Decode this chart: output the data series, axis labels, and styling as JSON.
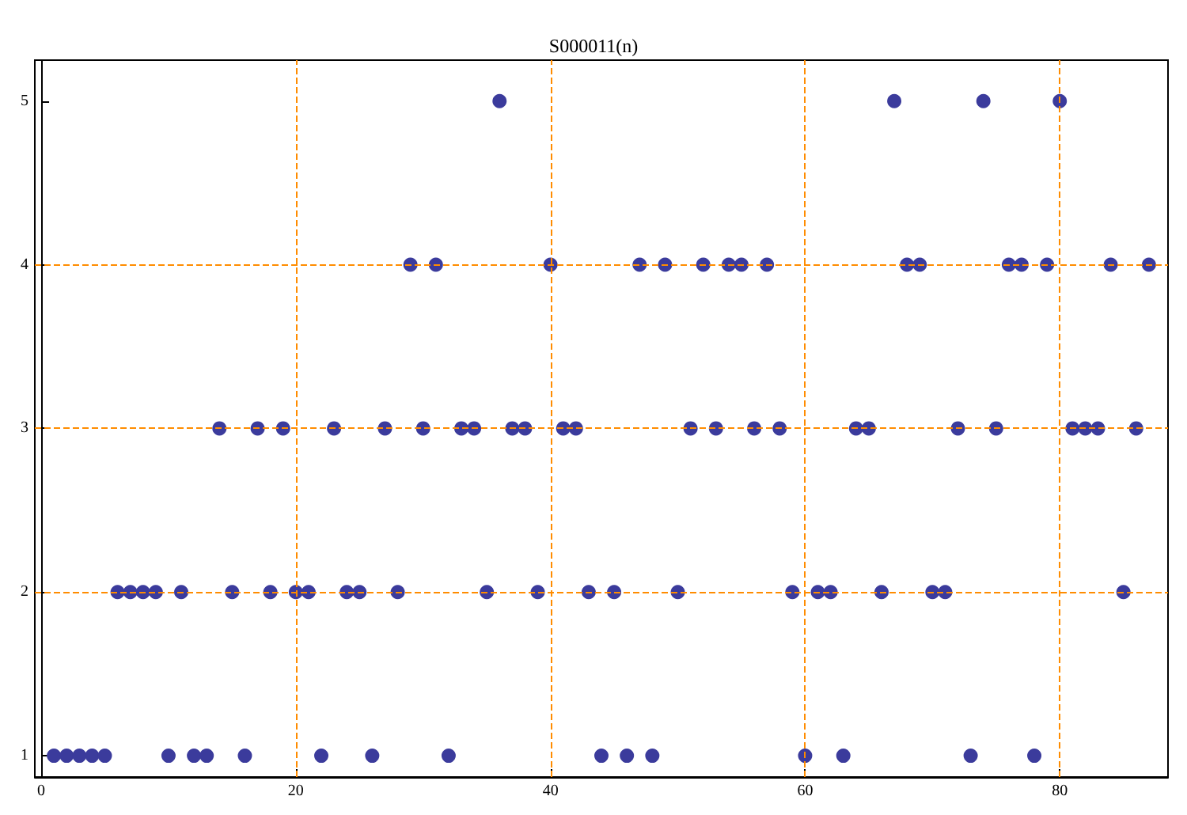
{
  "chart_data": {
    "type": "scatter",
    "title": "S000011(n)",
    "x": [
      1,
      2,
      3,
      4,
      5,
      6,
      7,
      8,
      9,
      10,
      11,
      12,
      13,
      14,
      15,
      16,
      17,
      18,
      19,
      20,
      21,
      22,
      23,
      24,
      25,
      26,
      27,
      28,
      29,
      30,
      31,
      32,
      33,
      34,
      35,
      36,
      37,
      38,
      39,
      40,
      41,
      42,
      43,
      44,
      45,
      46,
      47,
      48,
      49,
      50,
      51,
      52,
      53,
      54,
      55,
      56,
      57,
      58,
      59,
      60,
      61,
      62,
      63,
      64,
      65,
      66,
      67,
      68,
      69,
      70,
      71,
      72,
      73,
      74,
      75,
      76,
      77,
      78,
      79,
      80,
      81,
      82,
      83,
      84,
      85,
      86,
      87
    ],
    "values": [
      1,
      1,
      1,
      1,
      1,
      2,
      2,
      2,
      2,
      1,
      2,
      1,
      1,
      3,
      2,
      1,
      3,
      2,
      3,
      2,
      2,
      1,
      3,
      2,
      2,
      1,
      3,
      2,
      4,
      3,
      4,
      1,
      3,
      3,
      2,
      5,
      3,
      3,
      2,
      4,
      3,
      3,
      2,
      1,
      2,
      1,
      4,
      1,
      4,
      2,
      3,
      4,
      3,
      4,
      4,
      3,
      4,
      3,
      2,
      1,
      2,
      2,
      1,
      3,
      3,
      2,
      5,
      4,
      4,
      2,
      2,
      3,
      1,
      5,
      3,
      4,
      4,
      1,
      4,
      5,
      3,
      3,
      3,
      4,
      2,
      3,
      4
    ],
    "color": "#3b3b9c",
    "marker": "circle",
    "grid": false,
    "xlim": [
      -0.5,
      88.5
    ],
    "xticks": [
      0,
      20,
      40,
      60,
      80
    ],
    "ylim": [
      0.87,
      5.25
    ],
    "yticks": [
      1,
      2,
      3,
      4,
      5
    ],
    "ref_lines": [
      {
        "axis": "x",
        "value": 20,
        "color": "#ff8c00",
        "line_style": "dashed"
      },
      {
        "axis": "x",
        "value": 40,
        "color": "#ff8c00",
        "line_style": "dashed"
      },
      {
        "axis": "x",
        "value": 60,
        "color": "#ff8c00",
        "line_style": "dashed"
      },
      {
        "axis": "x",
        "value": 80,
        "color": "#ff8c00",
        "line_style": "dashed"
      },
      {
        "axis": "y",
        "value": 2,
        "color": "#ff8c00",
        "line_style": "dashed"
      },
      {
        "axis": "y",
        "value": 3,
        "color": "#ff8c00",
        "line_style": "dashed"
      },
      {
        "axis": "y",
        "value": 4,
        "color": "#ff8c00",
        "line_style": "dashed"
      }
    ]
  }
}
